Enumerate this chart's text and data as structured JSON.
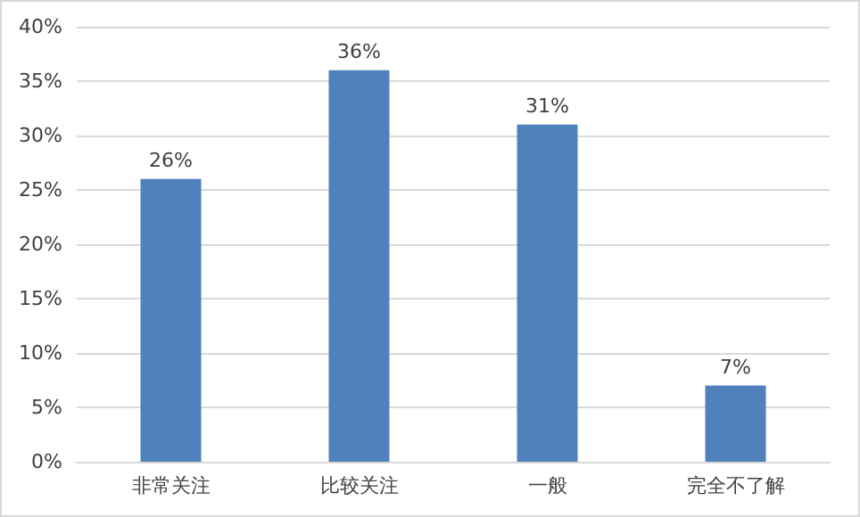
{
  "chart_data": {
    "type": "bar",
    "categories": [
      "非常关注",
      "比较关注",
      "一般",
      "完全不了解"
    ],
    "values": [
      26,
      36,
      31,
      7
    ],
    "color": "#4f81bd",
    "value_labels": [
      "26%",
      "36%",
      "31%",
      "7%"
    ],
    "ylim": [
      0,
      40
    ],
    "yticks": [
      {
        "value": 0,
        "label": "0%"
      },
      {
        "value": 5,
        "label": "5%"
      },
      {
        "value": 10,
        "label": "10%"
      },
      {
        "value": 15,
        "label": "15%"
      },
      {
        "value": 20,
        "label": "20%"
      },
      {
        "value": 25,
        "label": "25%"
      },
      {
        "value": 30,
        "label": "30%"
      },
      {
        "value": 35,
        "label": "35%"
      },
      {
        "value": 40,
        "label": "40%"
      }
    ],
    "grid": "y"
  }
}
